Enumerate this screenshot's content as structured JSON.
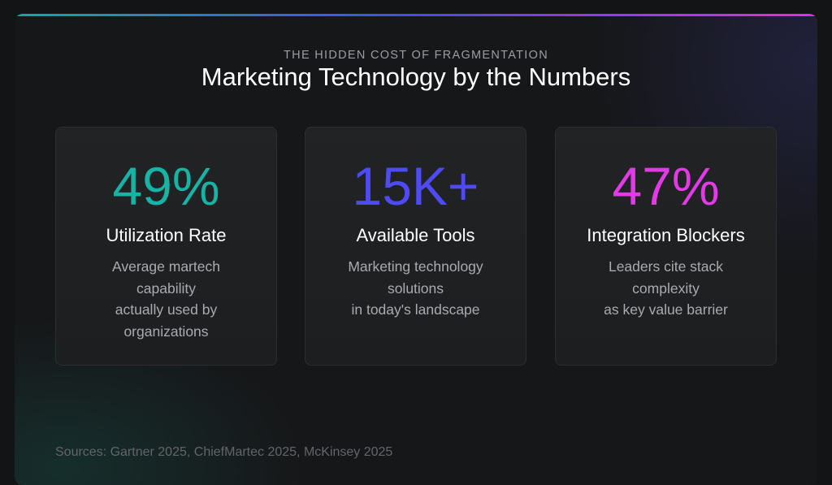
{
  "header": {
    "eyebrow": "THE HIDDEN COST OF FRAGMENTATION",
    "title": "Marketing Technology by the Numbers"
  },
  "colors": {
    "teal": "#17b3a4",
    "blue": "#4e4af5",
    "magenta": "#e23ae6"
  },
  "stats": [
    {
      "value": "49%",
      "label": "Utilization Rate",
      "lines": [
        "Average martech",
        "capability",
        "actually used by",
        "organizations"
      ],
      "color": "#17b3a4"
    },
    {
      "value": "15K+",
      "label": "Available Tools",
      "lines": [
        "Marketing technology",
        "solutions",
        "in today's landscape"
      ],
      "color": "#4e4af5"
    },
    {
      "value": "47%",
      "label": "Integration Blockers",
      "lines": [
        "Leaders cite stack",
        "complexity",
        "as key value barrier"
      ],
      "color": "#e23ae6"
    }
  ],
  "footer": {
    "sources": "Sources: Gartner 2025, ChiefMartec 2025, McKinsey 2025"
  }
}
